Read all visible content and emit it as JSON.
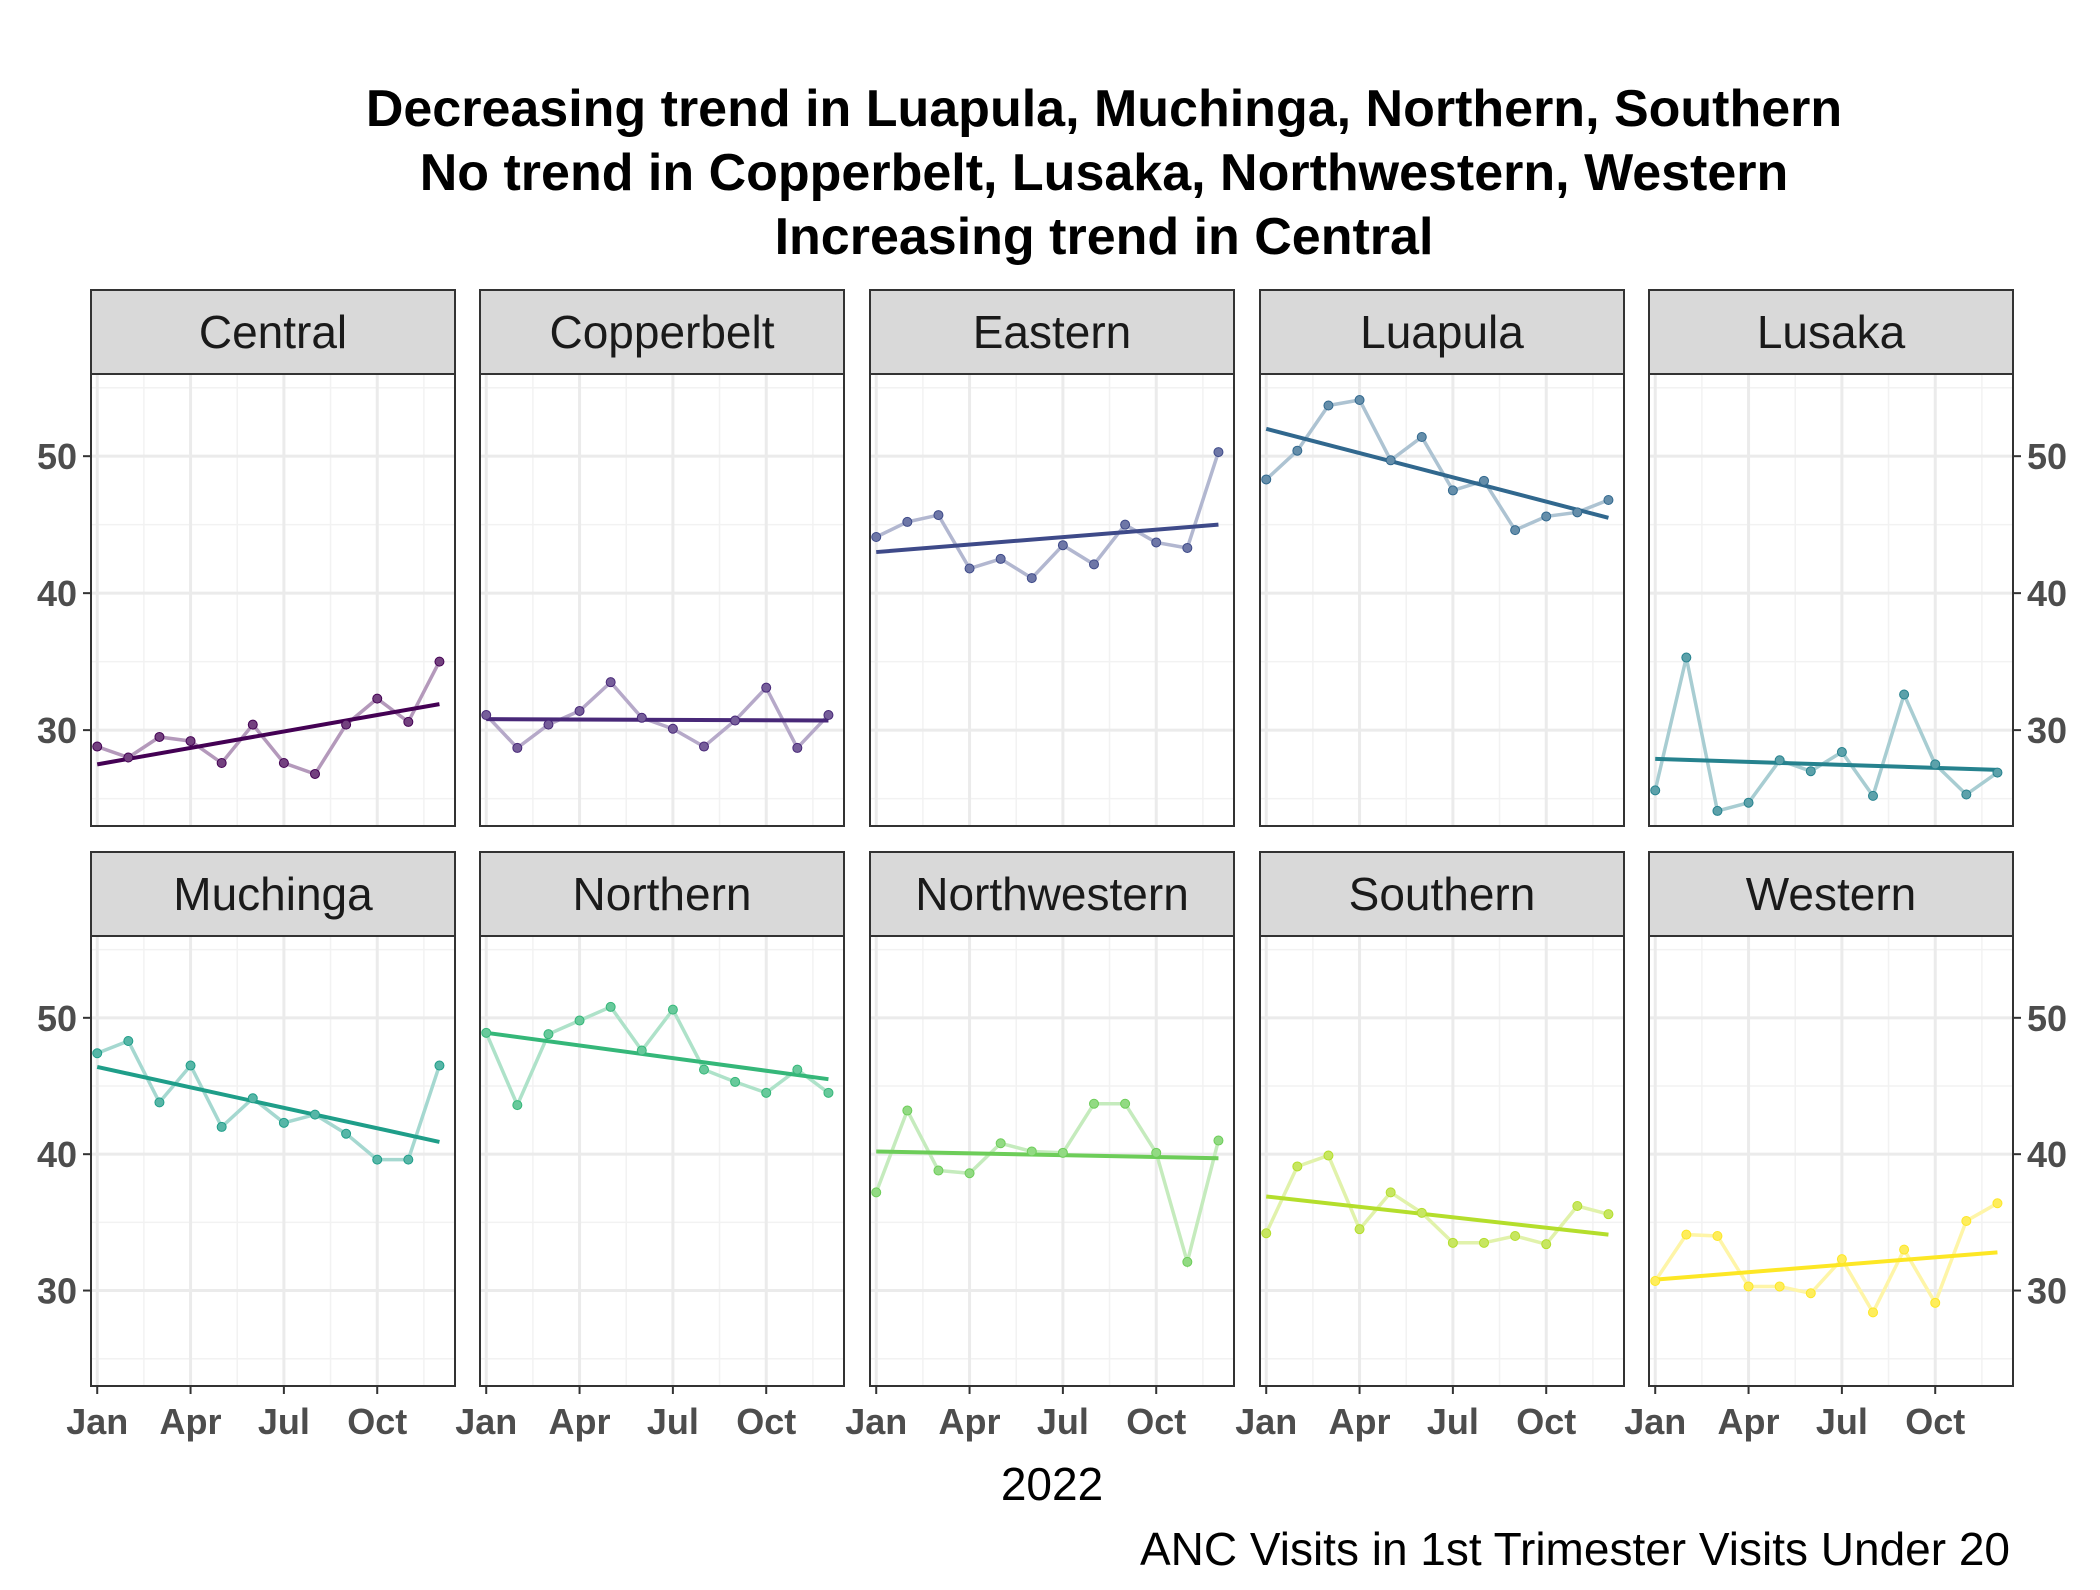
{
  "chart_data": {
    "type": "line",
    "title_lines": [
      "Decreasing trend in Luapula, Muchinga, Northern, Southern",
      "No trend in Copperbelt, Lusaka, Northwestern, Western",
      "Increasing trend in Central"
    ],
    "xlabel": "2022",
    "ylabel": "",
    "caption": "ANC Visits in 1st Trimester Visits Under 20",
    "x_tick_labels": [
      "Jan",
      "Apr",
      "Jul",
      "Oct"
    ],
    "x_tick_months": [
      1,
      4,
      7,
      10
    ],
    "y_ticks": [
      30,
      40,
      50
    ],
    "ylim": [
      23,
      56
    ],
    "xlim": [
      0.8,
      12.5
    ],
    "grid": true,
    "months": [
      1,
      2,
      3,
      4,
      5,
      6,
      7,
      8,
      9,
      10,
      11,
      12
    ],
    "panels": [
      {
        "name": "Central",
        "color": "#440154",
        "values": [
          28.8,
          28.0,
          29.5,
          29.2,
          27.6,
          30.4,
          27.6,
          26.8,
          30.4,
          32.3,
          30.6,
          35.0
        ],
        "trend": [
          27.5,
          31.9
        ]
      },
      {
        "name": "Copperbelt",
        "color": "#482878",
        "values": [
          31.1,
          28.7,
          30.4,
          31.4,
          33.5,
          30.9,
          30.1,
          28.8,
          30.7,
          33.1,
          28.7,
          31.1
        ],
        "trend": [
          30.8,
          30.7
        ]
      },
      {
        "name": "Eastern",
        "color": "#3E4A89",
        "values": [
          44.1,
          45.2,
          45.7,
          41.8,
          42.5,
          41.1,
          43.5,
          42.1,
          45.0,
          43.7,
          43.3,
          50.3
        ],
        "trend": [
          43.0,
          45.0
        ]
      },
      {
        "name": "Luapula",
        "color": "#31688E",
        "values": [
          48.3,
          50.4,
          53.7,
          54.1,
          49.7,
          51.4,
          47.5,
          48.2,
          44.6,
          45.6,
          45.9,
          46.8
        ],
        "trend": [
          52.0,
          45.5
        ]
      },
      {
        "name": "Lusaka",
        "color": "#26828E",
        "values": [
          25.6,
          35.3,
          24.1,
          24.7,
          27.8,
          27.0,
          28.4,
          25.2,
          32.6,
          27.5,
          25.3,
          26.9
        ],
        "trend": [
          27.9,
          27.1
        ]
      },
      {
        "name": "Muchinga",
        "color": "#1F9E89",
        "values": [
          47.4,
          48.3,
          43.8,
          46.5,
          42.0,
          44.1,
          42.3,
          42.9,
          41.5,
          39.6,
          39.6,
          46.5
        ],
        "trend": [
          46.4,
          40.9
        ]
      },
      {
        "name": "Northern",
        "color": "#35B779",
        "values": [
          48.9,
          43.6,
          48.8,
          49.8,
          50.8,
          47.6,
          50.6,
          46.2,
          45.3,
          44.5,
          46.2,
          44.5
        ],
        "trend": [
          48.9,
          45.5
        ]
      },
      {
        "name": "Northwestern",
        "color": "#6DCD59",
        "values": [
          37.2,
          43.2,
          38.8,
          38.6,
          40.8,
          40.2,
          40.1,
          43.7,
          43.7,
          40.1,
          32.1,
          41.0
        ],
        "trend": [
          40.2,
          39.7
        ]
      },
      {
        "name": "Southern",
        "color": "#B4DE2C",
        "values": [
          34.2,
          39.1,
          39.9,
          34.5,
          37.2,
          35.7,
          33.5,
          33.5,
          34.0,
          33.4,
          36.2,
          35.6
        ],
        "trend": [
          36.9,
          34.1
        ]
      },
      {
        "name": "Western",
        "color": "#FDE725",
        "values": [
          30.7,
          34.1,
          34.0,
          30.3,
          30.3,
          29.8,
          32.3,
          28.4,
          33.0,
          29.1,
          35.1,
          36.4
        ],
        "trend": [
          30.8,
          32.8
        ]
      }
    ]
  }
}
